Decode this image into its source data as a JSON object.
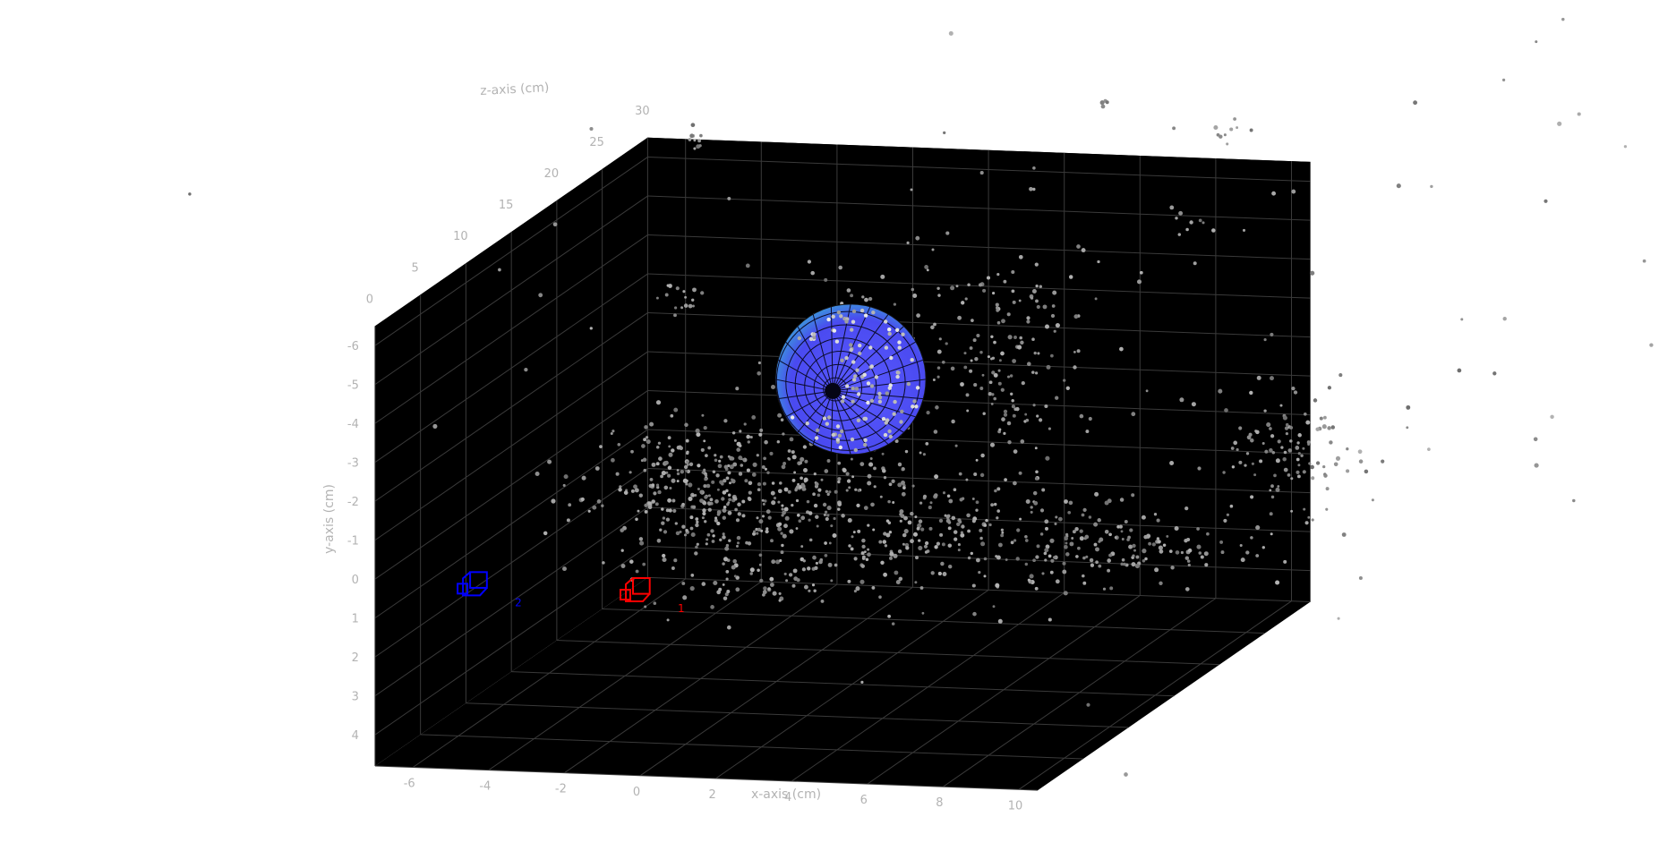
{
  "chart_data": {
    "type": "scatter",
    "title": "",
    "xlabel": "x-axis (cm)",
    "ylabel": "y-axis (cm)",
    "zlabel": "z-axis (cm)",
    "xlim": [
      -7,
      10.5
    ],
    "ylim": [
      -6.5,
      4.8
    ],
    "zlim": [
      0,
      30
    ],
    "x_ticks": [
      "-6",
      "-4",
      "-2",
      "0",
      "2",
      "4",
      "6",
      "8",
      "10"
    ],
    "y_ticks": [
      "-6",
      "-5",
      "-4",
      "-3",
      "-2",
      "-1",
      "0",
      "1",
      "2",
      "3",
      "4"
    ],
    "z_ticks": [
      "0",
      "5",
      "10",
      "15",
      "20",
      "25",
      "30"
    ],
    "background": "#000000",
    "grid": true,
    "cameras": [
      {
        "label": "1",
        "color": "#ff0000",
        "x": 0,
        "y": 0,
        "z": 0
      },
      {
        "label": "2",
        "color": "#0000ff",
        "x": -4.3,
        "y": 0,
        "z": 0
      }
    ],
    "sphere": {
      "x": 2.2,
      "y": -3.2,
      "z": 14,
      "radius": 2,
      "color": "#4a4af0"
    },
    "point_cloud": {
      "color": "#8c8c8c"
    }
  }
}
